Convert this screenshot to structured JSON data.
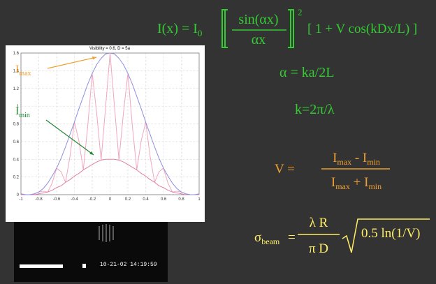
{
  "chart_data": {
    "type": "line",
    "title": "Visibility = 0.6,  D = 5a",
    "x": [
      -1,
      -0.95,
      -0.9,
      -0.85,
      -0.8,
      -0.75,
      -0.7,
      -0.65,
      -0.6,
      -0.55,
      -0.5,
      -0.45,
      -0.4,
      -0.35,
      -0.3,
      -0.25,
      -0.2,
      -0.15,
      -0.1,
      -0.05,
      0,
      0.05,
      0.1,
      0.15,
      0.2,
      0.25,
      0.3,
      0.35,
      0.4,
      0.45,
      0.5,
      0.55,
      0.6,
      0.65,
      0.7,
      0.75,
      0.8,
      0.85,
      0.9,
      0.95,
      1
    ],
    "series": [
      {
        "color": "#8f8fe0",
        "values": [
          0.01,
          0.0,
          0.0,
          0.01,
          0.03,
          0.07,
          0.13,
          0.21,
          0.3,
          0.41,
          0.54,
          0.68,
          0.82,
          0.97,
          1.11,
          1.25,
          1.37,
          1.47,
          1.54,
          1.59,
          1.6,
          1.59,
          1.54,
          1.47,
          1.37,
          1.25,
          1.11,
          0.97,
          0.82,
          0.68,
          0.54,
          0.41,
          0.3,
          0.21,
          0.13,
          0.07,
          0.03,
          0.01,
          0.0,
          0.0,
          0.01
        ]
      },
      {
        "color": "#e080a8",
        "values": [
          0.0,
          0.0,
          0.0,
          0.0,
          0.01,
          0.02,
          0.03,
          0.05,
          0.08,
          0.1,
          0.14,
          0.17,
          0.21,
          0.24,
          0.28,
          0.31,
          0.34,
          0.37,
          0.39,
          0.4,
          0.4,
          0.4,
          0.39,
          0.37,
          0.34,
          0.31,
          0.28,
          0.24,
          0.21,
          0.17,
          0.14,
          0.1,
          0.08,
          0.05,
          0.03,
          0.02,
          0.01,
          0.0,
          0.0,
          0.0,
          0.0
        ]
      },
      {
        "color": "#f2a6bc",
        "values": [
          0.01,
          0.0,
          0.0,
          0.01,
          0.03,
          0.04,
          0.03,
          0.13,
          0.3,
          0.26,
          0.14,
          0.43,
          0.82,
          0.61,
          0.28,
          0.78,
          1.37,
          0.92,
          0.39,
          0.99,
          1.6,
          0.99,
          0.39,
          0.92,
          1.37,
          0.78,
          0.28,
          0.61,
          0.82,
          0.43,
          0.14,
          0.26,
          0.3,
          0.13,
          0.03,
          0.04,
          0.03,
          0.01,
          0.0,
          0.0,
          0.01
        ]
      }
    ],
    "xlim": [
      -1,
      1
    ],
    "ylim": [
      0,
      1.6
    ],
    "xticks": [
      -1,
      -0.8,
      -0.6,
      -0.4,
      -0.2,
      0,
      0.2,
      0.4,
      0.6,
      0.8,
      1
    ],
    "yticks": [
      0,
      0.2,
      0.4,
      0.6,
      0.8,
      1,
      1.2,
      1.4,
      1.6
    ],
    "grid": true,
    "annotations": [
      {
        "text": "I",
        "sub": "max",
        "color": "#f0a030"
      },
      {
        "text": "I",
        "sub": "min",
        "color": "#228833"
      }
    ]
  },
  "slide": {
    "intensity": {
      "lhs": "I(x)  =  I",
      "lhs_sub": "0",
      "num": "sin(αx)",
      "den": "αx",
      "exp": "2",
      "rest": "[ 1 + V cos(kDx/L) ]"
    },
    "alpha": "α = ka/2L",
    "k": "k=2π/λ",
    "visibility": {
      "lhs": "V  =",
      "I": "I",
      "max": "max",
      "minus": " - I",
      "plus": " + I",
      "min": "min"
    },
    "sigma": {
      "lhs": "σ",
      "lhs_sub": "beam",
      "eq": "=",
      "num": "λ R",
      "den": "π D",
      "root": "0.5 ln(1/V)"
    },
    "photo": {
      "timestamp": "10-21-02  14:19:59"
    }
  }
}
